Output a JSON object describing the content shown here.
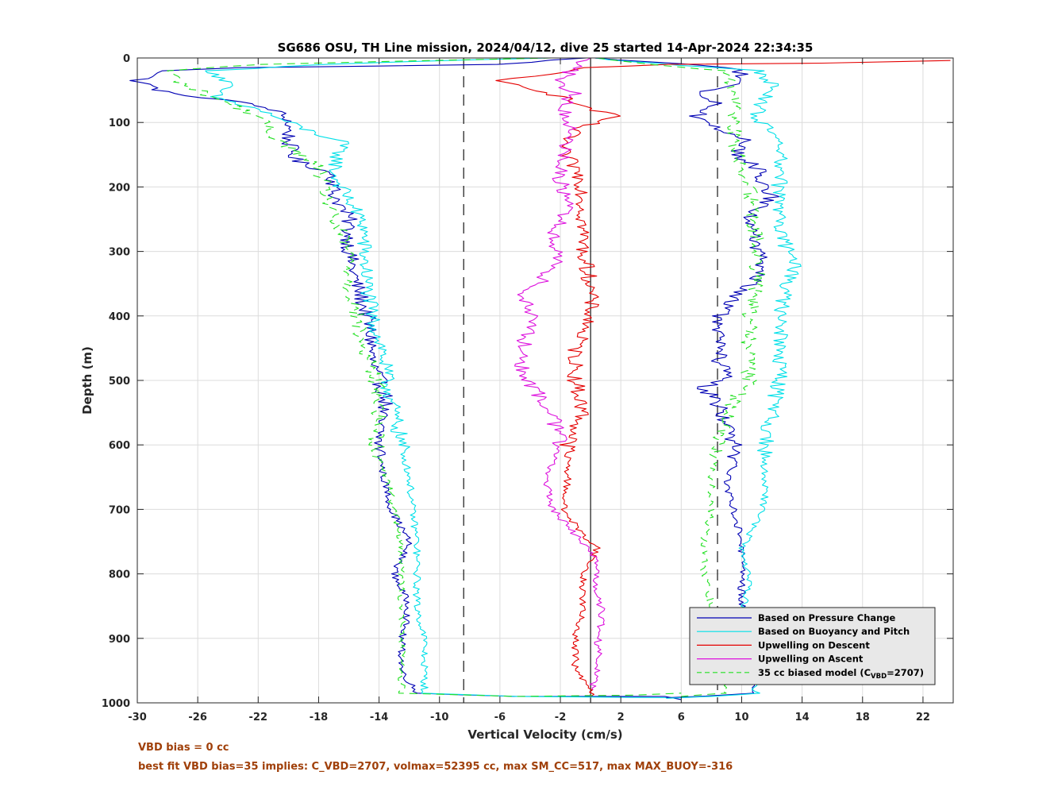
{
  "chart_data": {
    "type": "line",
    "title": "SG686 OSU, TH Line mission, 2024/04/12, dive 25 started 14-Apr-2024 22:34:35",
    "xlabel": "Vertical Velocity (cm/s)",
    "ylabel": "Depth (m)",
    "xlim": [
      -30,
      24
    ],
    "ylim": [
      0,
      1000
    ],
    "y_reversed": true,
    "grid": true,
    "legend_position": "lower-right",
    "xticks": [
      -30,
      -26,
      -22,
      -18,
      -14,
      -10,
      -6,
      -2,
      2,
      6,
      10,
      14,
      18,
      22
    ],
    "xtick_labels": [
      "-30",
      "-26",
      "-22",
      "-18",
      "-14",
      "-10",
      "-6",
      "-2",
      "2",
      "6",
      "10",
      "14",
      "18",
      "22"
    ],
    "yticks": [
      0,
      100,
      200,
      300,
      400,
      500,
      600,
      700,
      800,
      900,
      1000
    ],
    "ytick_labels": [
      "0",
      "100",
      "200",
      "300",
      "400",
      "500",
      "600",
      "700",
      "800",
      "900",
      "1000"
    ],
    "reference_lines": [
      {
        "x": 0,
        "style": "solid",
        "color": "#000000"
      },
      {
        "x": -8.4,
        "style": "dashed",
        "color": "#000000"
      },
      {
        "x": 8.4,
        "style": "dashed",
        "color": "#000000"
      }
    ],
    "series": [
      {
        "name": "Based on Pressure Change",
        "color": "#0000b4",
        "dash": "",
        "legs": [
          [
            [
              -0.5,
              0
            ],
            [
              -6,
              10
            ],
            [
              -23,
              15
            ],
            [
              -28,
              20
            ],
            [
              -30,
              35
            ],
            [
              -28,
              55
            ],
            [
              -24,
              65
            ],
            [
              -21,
              80
            ],
            [
              -20,
              95
            ],
            [
              -20,
              130
            ],
            [
              -19.5,
              160
            ],
            [
              -17,
              180
            ],
            [
              -17,
              210
            ],
            [
              -16,
              250
            ],
            [
              -16,
              300
            ],
            [
              -15.5,
              350
            ],
            [
              -14.8,
              400
            ],
            [
              -14.5,
              440
            ],
            [
              -14.5,
              470
            ],
            [
              -14,
              500
            ],
            [
              -13.5,
              530
            ],
            [
              -14,
              560
            ],
            [
              -14,
              600
            ],
            [
              -13.7,
              650
            ],
            [
              -13.2,
              700
            ],
            [
              -12,
              750
            ],
            [
              -13,
              800
            ],
            [
              -12,
              850
            ],
            [
              -12.5,
              900
            ],
            [
              -12.5,
              950
            ],
            [
              -11.5,
              985
            ],
            [
              -5,
              990
            ],
            [
              5,
              990
            ],
            [
              6,
              995
            ]
          ],
          [
            [
              0,
              0
            ],
            [
              9.5,
              15
            ],
            [
              10,
              25
            ],
            [
              9.5,
              40
            ],
            [
              7,
              55
            ],
            [
              8.5,
              70
            ],
            [
              7,
              90
            ],
            [
              8.5,
              110
            ],
            [
              10.5,
              130
            ],
            [
              9.5,
              150
            ],
            [
              11,
              170
            ],
            [
              11.5,
              200
            ],
            [
              12,
              215
            ],
            [
              10.5,
              250
            ],
            [
              11,
              300
            ],
            [
              11.5,
              330
            ],
            [
              10,
              360
            ],
            [
              8.5,
              400
            ],
            [
              8.5,
              440
            ],
            [
              8.5,
              470
            ],
            [
              9,
              500
            ],
            [
              7.5,
              510
            ],
            [
              8.5,
              540
            ],
            [
              9,
              570
            ],
            [
              9.5,
              600
            ],
            [
              9.5,
              630
            ],
            [
              9,
              660
            ],
            [
              9.5,
              700
            ],
            [
              10,
              750
            ],
            [
              10,
              800
            ],
            [
              10,
              850
            ],
            [
              10.5,
              900
            ],
            [
              10.5,
              950
            ],
            [
              11,
              985
            ],
            [
              7,
              990
            ],
            [
              5,
              992
            ]
          ]
        ]
      },
      {
        "name": "Based on Buoyancy and Pitch",
        "color": "#00e0e8",
        "dash": "",
        "legs": [
          [
            [
              -3,
              0
            ],
            [
              -18,
              10
            ],
            [
              -25,
              20
            ],
            [
              -24,
              40
            ],
            [
              -25,
              60
            ],
            [
              -22,
              80
            ],
            [
              -19,
              110
            ],
            [
              -16.5,
              130
            ],
            [
              -17,
              180
            ],
            [
              -16,
              220
            ],
            [
              -15,
              260
            ],
            [
              -15,
              300
            ],
            [
              -14.8,
              350
            ],
            [
              -14.5,
              400
            ],
            [
              -13.8,
              450
            ],
            [
              -13.5,
              500
            ],
            [
              -13,
              550
            ],
            [
              -12.5,
              600
            ],
            [
              -12,
              650
            ],
            [
              -11.8,
              700
            ],
            [
              -11.5,
              750
            ],
            [
              -11.5,
              800
            ],
            [
              -11.5,
              850
            ],
            [
              -11,
              900
            ],
            [
              -11,
              950
            ],
            [
              -11,
              985
            ],
            [
              -5,
              990
            ],
            [
              5,
              992
            ]
          ],
          [
            [
              0,
              0
            ],
            [
              11,
              20
            ],
            [
              12,
              40
            ],
            [
              11.5,
              60
            ],
            [
              11,
              90
            ],
            [
              12,
              120
            ],
            [
              12.5,
              150
            ],
            [
              12.5,
              200
            ],
            [
              12.5,
              250
            ],
            [
              13,
              300
            ],
            [
              13.5,
              320
            ],
            [
              13,
              350
            ],
            [
              12.5,
              400
            ],
            [
              12.5,
              450
            ],
            [
              12.5,
              500
            ],
            [
              12,
              550
            ],
            [
              11.5,
              600
            ],
            [
              11.5,
              650
            ],
            [
              11.5,
              690
            ],
            [
              11,
              720
            ],
            [
              10,
              760
            ],
            [
              10.5,
              800
            ],
            [
              10.2,
              850
            ],
            [
              10.5,
              900
            ],
            [
              10.5,
              950
            ],
            [
              11,
              985
            ],
            [
              8,
              990
            ],
            [
              5,
              993
            ]
          ]
        ]
      },
      {
        "name": "Upwelling on Descent",
        "color": "#e40000",
        "dash": "",
        "legs": [
          [
            [
              23.5,
              4
            ],
            [
              15,
              8
            ],
            [
              5,
              10
            ],
            [
              0,
              15
            ],
            [
              -3,
              25
            ],
            [
              -6.5,
              35
            ],
            [
              -4,
              45
            ],
            [
              -2,
              60
            ],
            [
              -0.5,
              75
            ],
            [
              1.5,
              90
            ],
            [
              -1,
              110
            ],
            [
              -2,
              140
            ],
            [
              -1,
              170
            ],
            [
              -0.5,
              200
            ],
            [
              -0.5,
              250
            ],
            [
              -0.5,
              300
            ],
            [
              0,
              350
            ],
            [
              0,
              400
            ],
            [
              -1,
              450
            ],
            [
              -1,
              500
            ],
            [
              -0.5,
              550
            ],
            [
              -1.5,
              600
            ],
            [
              -1.5,
              650
            ],
            [
              -1.8,
              700
            ],
            [
              -0.5,
              740
            ],
            [
              0.5,
              760
            ],
            [
              -0.5,
              800
            ],
            [
              -0.5,
              850
            ],
            [
              -1,
              900
            ],
            [
              -1,
              950
            ],
            [
              0,
              980
            ],
            [
              0,
              990
            ]
          ]
        ]
      },
      {
        "name": "Upwelling on Ascent",
        "color": "#dd10dd",
        "dash": "",
        "legs": [
          [
            [
              0,
              980
            ],
            [
              0.5,
              950
            ],
            [
              0.5,
              900
            ],
            [
              0.8,
              860
            ],
            [
              0.2,
              820
            ],
            [
              0.5,
              780
            ],
            [
              -1,
              740
            ],
            [
              -2.5,
              700
            ],
            [
              -3,
              650
            ],
            [
              -2,
              600
            ],
            [
              -2.5,
              550
            ],
            [
              -3.5,
              520
            ],
            [
              -4.5,
              490
            ],
            [
              -4.5,
              450
            ],
            [
              -4,
              400
            ],
            [
              -4.5,
              370
            ],
            [
              -3,
              340
            ],
            [
              -2,
              310
            ],
            [
              -2.5,
              280
            ],
            [
              -2,
              250
            ],
            [
              -1.5,
              220
            ],
            [
              -2,
              190
            ],
            [
              -2,
              160
            ],
            [
              -1.5,
              130
            ],
            [
              -1.5,
              100
            ],
            [
              -2,
              75
            ],
            [
              -1,
              55
            ],
            [
              -2,
              40
            ],
            [
              -1.5,
              25
            ],
            [
              -1,
              10
            ],
            [
              0,
              0
            ]
          ]
        ]
      },
      {
        "name": "35 cc biased model (C_VBD=2707)",
        "color": "#22e022",
        "dash": "10,7",
        "legs": [
          [
            [
              -3,
              0
            ],
            [
              -22,
              10
            ],
            [
              -28,
              20
            ],
            [
              -27,
              40
            ],
            [
              -25,
              60
            ],
            [
              -22,
              90
            ],
            [
              -21,
              120
            ],
            [
              -18,
              170
            ],
            [
              -17.5,
              210
            ],
            [
              -17,
              250
            ],
            [
              -16,
              300
            ],
            [
              -16,
              350
            ],
            [
              -15.5,
              400
            ],
            [
              -15.2,
              440
            ],
            [
              -14.5,
              480
            ],
            [
              -14,
              520
            ],
            [
              -14,
              560
            ],
            [
              -14.2,
              600
            ],
            [
              -13.5,
              650
            ],
            [
              -13,
              700
            ],
            [
              -12.5,
              750
            ],
            [
              -12.5,
              800
            ],
            [
              -12.5,
              850
            ],
            [
              -12.5,
              900
            ],
            [
              -12.5,
              950
            ],
            [
              -12.5,
              985
            ],
            [
              -5,
              990
            ],
            [
              3,
              988
            ],
            [
              6,
              985
            ]
          ],
          [
            [
              0,
              0
            ],
            [
              9,
              20
            ],
            [
              9.5,
              50
            ],
            [
              9.5,
              90
            ],
            [
              9.5,
              140
            ],
            [
              10,
              170
            ],
            [
              10.5,
              200
            ],
            [
              10.8,
              250
            ],
            [
              11,
              300
            ],
            [
              11,
              350
            ],
            [
              10.5,
              400
            ],
            [
              10.5,
              450
            ],
            [
              10.5,
              500
            ],
            [
              9,
              550
            ],
            [
              8.5,
              600
            ],
            [
              8,
              650
            ],
            [
              8,
              700
            ],
            [
              7.5,
              750
            ],
            [
              7.5,
              800
            ],
            [
              8,
              850
            ],
            [
              8.5,
              900
            ],
            [
              8.5,
              950
            ],
            [
              9,
              985
            ],
            [
              6,
              990
            ]
          ]
        ]
      }
    ],
    "legend_entries": [
      {
        "label": "Based on Pressure Change",
        "color": "#0000b4",
        "dash": ""
      },
      {
        "label": "Based on Buoyancy and Pitch",
        "color": "#00e0e8",
        "dash": ""
      },
      {
        "label": "Upwelling on Descent",
        "color": "#e40000",
        "dash": ""
      },
      {
        "label": "Upwelling on Ascent",
        "color": "#dd10dd",
        "dash": ""
      },
      {
        "label_main": "35 cc biased model (C",
        "label_sub": "VBD",
        "label_tail": "=2707)",
        "color": "#22e022",
        "dash": "6,4"
      }
    ]
  },
  "footer": {
    "line1": "VBD bias = 0 cc",
    "line2": "best fit VBD bias=35 implies: C_VBD=2707, volmax=52395 cc, max SM_CC=517, max MAX_BUOY=-316",
    "color": "#a0400a"
  }
}
